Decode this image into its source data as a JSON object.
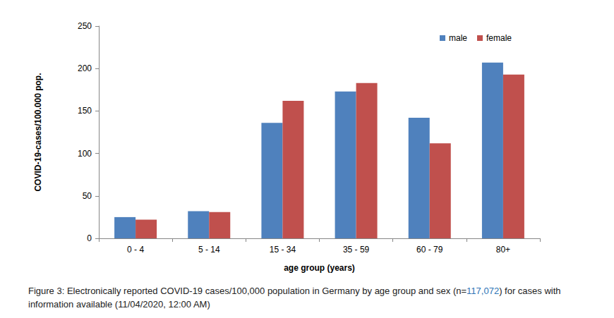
{
  "chart_data": {
    "type": "bar",
    "caption": "Figure 3: Electronically reported COVID-19 cases/100,000 population in Germany by age group and sex (n=117,072) for cases with information available (11/04/2020, 12:00 AM)",
    "x_label": "age group (years)",
    "y_label": "COVID-19-cases/100.000 pop.",
    "categories": [
      "0 - 4",
      "5 - 14",
      "15 - 34",
      "35 - 59",
      "60 - 79",
      "80+"
    ],
    "series": [
      {
        "name": "male",
        "color": "#4f81bd",
        "values": [
          25,
          32,
          136,
          173,
          142,
          207
        ]
      },
      {
        "name": "female",
        "color": "#c0504d",
        "values": [
          22,
          31,
          162,
          183,
          112,
          193
        ]
      }
    ],
    "ylim": [
      0,
      250
    ],
    "yticks": [
      0,
      50,
      100,
      150,
      200,
      250
    ],
    "grid": false,
    "legend": "top-right"
  }
}
